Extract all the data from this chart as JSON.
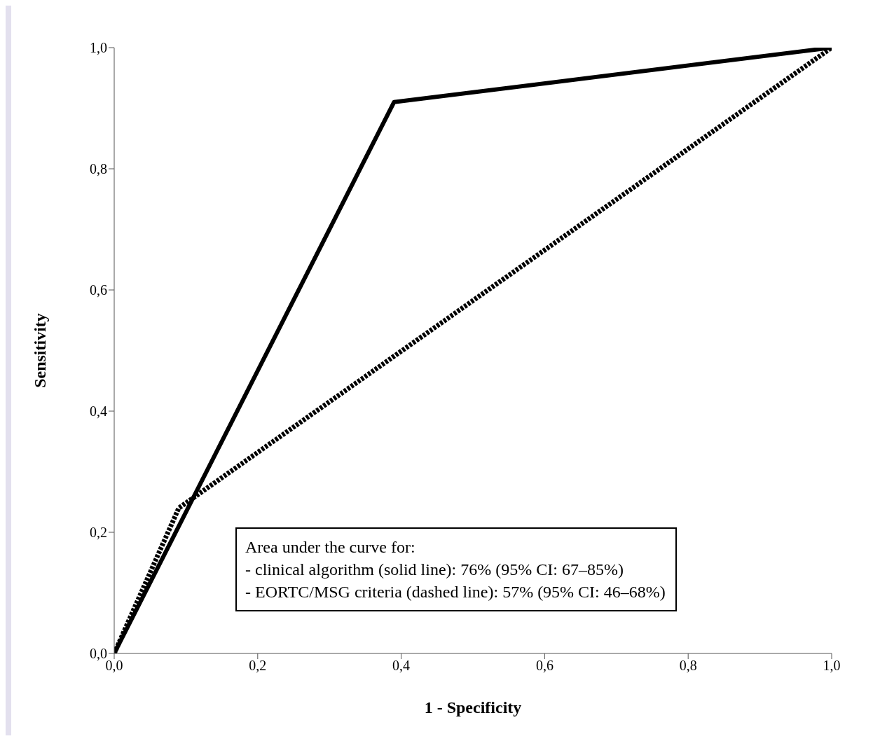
{
  "chart_data": {
    "type": "line",
    "xlabel": "1 - Specificity",
    "ylabel": "Sensitivity",
    "xlim": [
      0,
      1
    ],
    "ylim": [
      0,
      1
    ],
    "xticks": [
      {
        "value": 0,
        "label": "0,0"
      },
      {
        "value": 0.2,
        "label": "0,2"
      },
      {
        "value": 0.4,
        "label": "0,4"
      },
      {
        "value": 0.6,
        "label": "0,6"
      },
      {
        "value": 0.8,
        "label": "0,8"
      },
      {
        "value": 1,
        "label": "1,0"
      }
    ],
    "yticks": [
      {
        "value": 0,
        "label": "0,0"
      },
      {
        "value": 0.2,
        "label": "0,2"
      },
      {
        "value": 0.4,
        "label": "0,4"
      },
      {
        "value": 0.6,
        "label": "0,6"
      },
      {
        "value": 0.8,
        "label": "0,8"
      },
      {
        "value": 1,
        "label": "1,0"
      }
    ],
    "series": [
      {
        "color": "#000000",
        "line_style": "solid",
        "x": [
          0,
          0.39,
          1
        ],
        "values": [
          0,
          0.91,
          1
        ]
      },
      {
        "color": "#000000",
        "line_style": "dashed",
        "x": [
          0,
          0.09,
          1
        ],
        "values": [
          0,
          0.24,
          1
        ]
      }
    ],
    "annotations": [
      "Area under the curve for:",
      "- clinical algorithm (solid line): 76% (95% CI: 67–85%)",
      "- EORTC/MSG criteria (dashed line): 57% (95% CI: 46–68%)"
    ],
    "grid": false,
    "legend": false,
    "marker": "none"
  }
}
